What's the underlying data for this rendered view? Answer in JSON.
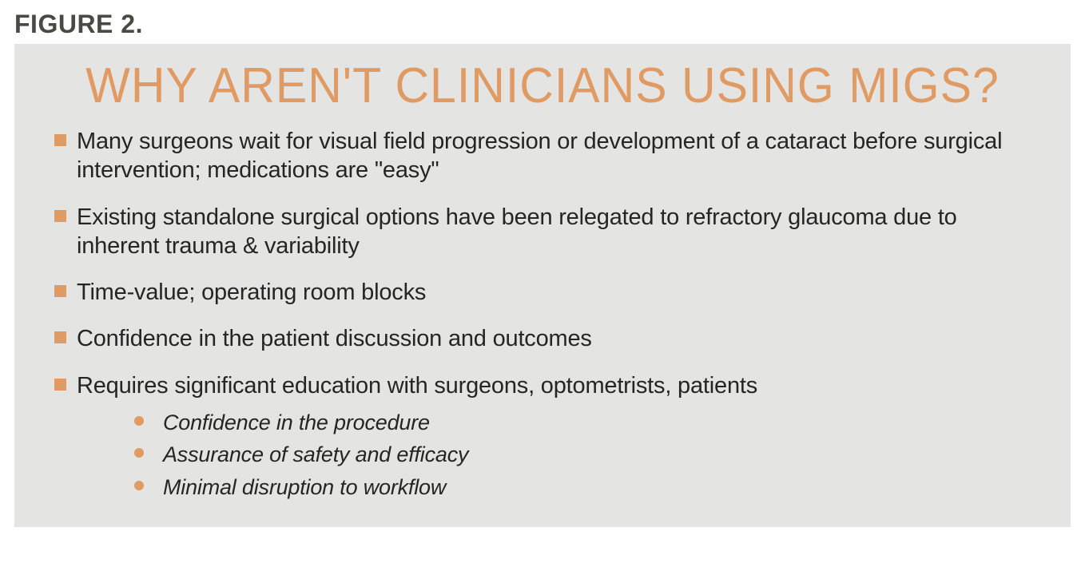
{
  "figure_label": "FIGURE 2.",
  "figure_label_color": "#4a4a42",
  "figure_label_fontsize": 32,
  "panel_background": "#e4e4e2",
  "title": "WHY AREN'T CLINICIANS USING MIGS?",
  "title_color": "#e09a63",
  "title_fontsize": 59,
  "body_text_color": "#252525",
  "body_fontsize": 29,
  "bullet_marker_color": "#e09a63",
  "sub_bullet_marker_color": "#e09a63",
  "sub_fontsize": 27,
  "bullets": [
    {
      "text": "Many surgeons wait for visual field progression or development of a cataract before surgical intervention; medications are \"easy\"",
      "subs": []
    },
    {
      "text": "Existing standalone surgical options have been relegated to refractory glaucoma due to inherent trauma & variability",
      "subs": []
    },
    {
      "text": "Time-value; operating room blocks",
      "subs": []
    },
    {
      "text": "Confidence in the patient discussion and outcomes",
      "subs": []
    },
    {
      "text": "Requires significant education with surgeons, optometrists, patients",
      "subs": [
        "Confidence in the procedure",
        "Assurance of safety and efficacy",
        "Minimal disruption to workflow"
      ]
    }
  ]
}
